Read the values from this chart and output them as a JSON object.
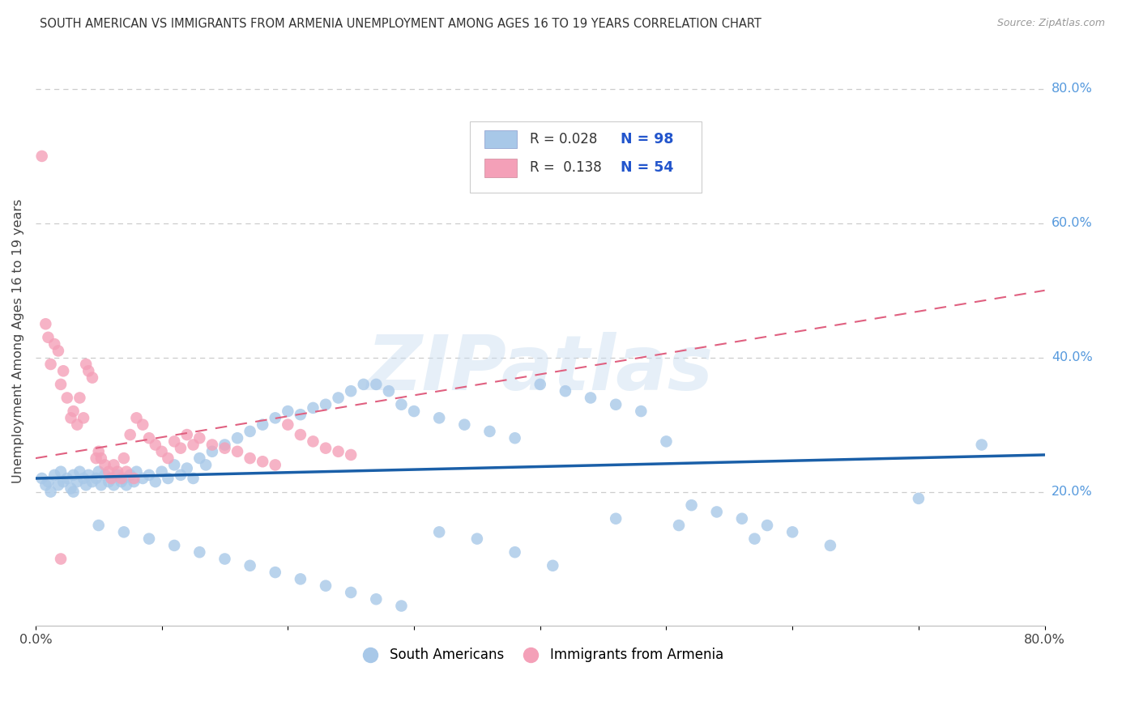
{
  "title": "SOUTH AMERICAN VS IMMIGRANTS FROM ARMENIA UNEMPLOYMENT AMONG AGES 16 TO 19 YEARS CORRELATION CHART",
  "source": "Source: ZipAtlas.com",
  "ylabel": "Unemployment Among Ages 16 to 19 years",
  "xlim": [
    0.0,
    0.8
  ],
  "ylim": [
    0.0,
    0.85
  ],
  "ytick_right": [
    0.2,
    0.4,
    0.6,
    0.8
  ],
  "ytick_right_labels": [
    "20.0%",
    "40.0%",
    "60.0%",
    "80.0%"
  ],
  "blue_color": "#a8c8e8",
  "pink_color": "#f4a0b8",
  "blue_line_color": "#1a5fa8",
  "pink_line_color": "#e06080",
  "blue_N": 98,
  "pink_N": 54,
  "blue_R": 0.028,
  "pink_R": 0.138,
  "watermark": "ZIPatlas",
  "bottom_legend_blue": "South Americans",
  "bottom_legend_pink": "Immigrants from Armenia",
  "grid_color": "#cccccc",
  "background_color": "#ffffff",
  "blue_scatter_x": [
    0.005,
    0.008,
    0.01,
    0.012,
    0.015,
    0.018,
    0.02,
    0.022,
    0.025,
    0.028,
    0.03,
    0.033,
    0.035,
    0.038,
    0.04,
    0.042,
    0.045,
    0.048,
    0.05,
    0.052,
    0.055,
    0.058,
    0.06,
    0.062,
    0.065,
    0.068,
    0.07,
    0.072,
    0.075,
    0.078,
    0.08,
    0.085,
    0.09,
    0.095,
    0.1,
    0.105,
    0.11,
    0.115,
    0.12,
    0.125,
    0.13,
    0.135,
    0.14,
    0.15,
    0.16,
    0.17,
    0.18,
    0.19,
    0.2,
    0.21,
    0.22,
    0.23,
    0.24,
    0.25,
    0.26,
    0.27,
    0.28,
    0.29,
    0.3,
    0.32,
    0.34,
    0.36,
    0.38,
    0.4,
    0.42,
    0.44,
    0.46,
    0.48,
    0.5,
    0.52,
    0.54,
    0.56,
    0.58,
    0.6,
    0.03,
    0.05,
    0.07,
    0.09,
    0.11,
    0.13,
    0.15,
    0.17,
    0.19,
    0.21,
    0.23,
    0.25,
    0.27,
    0.29,
    0.32,
    0.35,
    0.38,
    0.41,
    0.46,
    0.51,
    0.57,
    0.63,
    0.7,
    0.75
  ],
  "blue_scatter_y": [
    0.22,
    0.21,
    0.215,
    0.2,
    0.225,
    0.21,
    0.23,
    0.215,
    0.22,
    0.205,
    0.225,
    0.215,
    0.23,
    0.22,
    0.21,
    0.225,
    0.215,
    0.22,
    0.23,
    0.21,
    0.225,
    0.215,
    0.22,
    0.21,
    0.225,
    0.215,
    0.22,
    0.21,
    0.225,
    0.215,
    0.23,
    0.22,
    0.225,
    0.215,
    0.23,
    0.22,
    0.24,
    0.225,
    0.235,
    0.22,
    0.25,
    0.24,
    0.26,
    0.27,
    0.28,
    0.29,
    0.3,
    0.31,
    0.32,
    0.315,
    0.325,
    0.33,
    0.34,
    0.35,
    0.36,
    0.36,
    0.35,
    0.33,
    0.32,
    0.31,
    0.3,
    0.29,
    0.28,
    0.36,
    0.35,
    0.34,
    0.33,
    0.32,
    0.275,
    0.18,
    0.17,
    0.16,
    0.15,
    0.14,
    0.2,
    0.15,
    0.14,
    0.13,
    0.12,
    0.11,
    0.1,
    0.09,
    0.08,
    0.07,
    0.06,
    0.05,
    0.04,
    0.03,
    0.14,
    0.13,
    0.11,
    0.09,
    0.16,
    0.15,
    0.13,
    0.12,
    0.19,
    0.27
  ],
  "pink_scatter_x": [
    0.005,
    0.008,
    0.01,
    0.012,
    0.015,
    0.018,
    0.02,
    0.022,
    0.025,
    0.028,
    0.03,
    0.033,
    0.035,
    0.038,
    0.04,
    0.042,
    0.045,
    0.048,
    0.05,
    0.052,
    0.055,
    0.058,
    0.06,
    0.062,
    0.065,
    0.068,
    0.07,
    0.072,
    0.075,
    0.078,
    0.08,
    0.085,
    0.09,
    0.095,
    0.1,
    0.105,
    0.11,
    0.115,
    0.12,
    0.125,
    0.13,
    0.14,
    0.15,
    0.16,
    0.17,
    0.18,
    0.19,
    0.2,
    0.21,
    0.22,
    0.23,
    0.24,
    0.25,
    0.02
  ],
  "pink_scatter_y": [
    0.7,
    0.45,
    0.43,
    0.39,
    0.42,
    0.41,
    0.36,
    0.38,
    0.34,
    0.31,
    0.32,
    0.3,
    0.34,
    0.31,
    0.39,
    0.38,
    0.37,
    0.25,
    0.26,
    0.25,
    0.24,
    0.23,
    0.22,
    0.24,
    0.23,
    0.22,
    0.25,
    0.23,
    0.285,
    0.22,
    0.31,
    0.3,
    0.28,
    0.27,
    0.26,
    0.25,
    0.275,
    0.265,
    0.285,
    0.27,
    0.28,
    0.27,
    0.265,
    0.26,
    0.25,
    0.245,
    0.24,
    0.3,
    0.285,
    0.275,
    0.265,
    0.26,
    0.255,
    0.1
  ]
}
